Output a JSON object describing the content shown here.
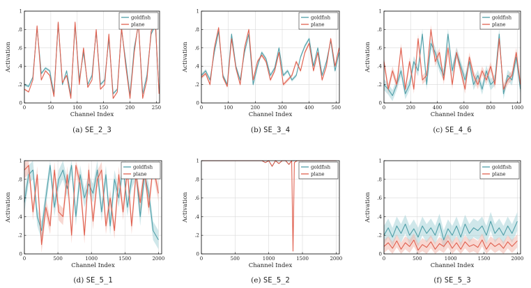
{
  "colors": {
    "goldfish": "#4f9fa8",
    "plane": "#e0604f",
    "goldfish_band": "#9fd0d6",
    "plane_band": "#f2b1a6"
  },
  "chart_data": [
    {
      "type": "line",
      "caption_label": "(a)",
      "caption_code": "SE_2_3",
      "xlabel": "Channel Index",
      "ylabel": "Activation",
      "xlim": [
        0,
        256
      ],
      "ylim": [
        0,
        1
      ],
      "xticks": [
        0,
        50,
        100,
        150,
        200,
        250
      ],
      "yticks": [
        0,
        0.2,
        0.4,
        0.6,
        0.8,
        1
      ],
      "band_width": [
        0.015,
        0.01
      ],
      "series": [
        {
          "name": "goldfish",
          "x": [
            0,
            8,
            16,
            24,
            32,
            40,
            48,
            56,
            64,
            72,
            80,
            88,
            96,
            104,
            112,
            120,
            128,
            136,
            144,
            152,
            160,
            168,
            176,
            184,
            192,
            200,
            208,
            216,
            224,
            232,
            240,
            248,
            255
          ],
          "values": [
            0.2,
            0.18,
            0.28,
            0.82,
            0.32,
            0.38,
            0.35,
            0.1,
            0.87,
            0.2,
            0.35,
            0.08,
            0.85,
            0.25,
            0.55,
            0.2,
            0.3,
            0.78,
            0.2,
            0.25,
            0.7,
            0.1,
            0.15,
            0.8,
            0.45,
            0.08,
            0.6,
            0.85,
            0.1,
            0.3,
            0.75,
            0.85,
            0.12
          ]
        },
        {
          "name": "plane",
          "x": [
            0,
            8,
            16,
            24,
            32,
            40,
            48,
            56,
            64,
            72,
            80,
            88,
            96,
            104,
            112,
            120,
            128,
            136,
            144,
            152,
            160,
            168,
            176,
            184,
            192,
            200,
            208,
            216,
            224,
            232,
            240,
            248,
            255
          ],
          "values": [
            0.15,
            0.12,
            0.25,
            0.84,
            0.25,
            0.35,
            0.3,
            0.07,
            0.88,
            0.22,
            0.3,
            0.05,
            0.88,
            0.2,
            0.6,
            0.17,
            0.25,
            0.8,
            0.15,
            0.2,
            0.75,
            0.05,
            0.12,
            0.82,
            0.4,
            0.05,
            0.55,
            0.88,
            0.05,
            0.25,
            0.78,
            0.88,
            0.1
          ]
        }
      ]
    },
    {
      "type": "line",
      "caption_label": "(b)",
      "caption_code": "SE_3_4",
      "xlabel": "Channel Index",
      "ylabel": "Activation",
      "xlim": [
        0,
        512
      ],
      "ylim": [
        0,
        1
      ],
      "xticks": [
        0,
        100,
        200,
        300,
        400,
        500
      ],
      "yticks": [
        0,
        0.2,
        0.4,
        0.6,
        0.8,
        1
      ],
      "band_width": [
        0.02,
        0.02
      ],
      "series": [
        {
          "name": "goldfish",
          "x": [
            0,
            16,
            32,
            48,
            64,
            80,
            96,
            112,
            128,
            144,
            160,
            176,
            192,
            208,
            224,
            240,
            256,
            272,
            288,
            304,
            320,
            336,
            352,
            368,
            384,
            400,
            416,
            432,
            448,
            464,
            480,
            496,
            511
          ],
          "values": [
            0.3,
            0.35,
            0.25,
            0.55,
            0.78,
            0.3,
            0.2,
            0.75,
            0.4,
            0.25,
            0.55,
            0.75,
            0.2,
            0.4,
            0.55,
            0.48,
            0.3,
            0.38,
            0.6,
            0.3,
            0.35,
            0.25,
            0.3,
            0.5,
            0.62,
            0.7,
            0.4,
            0.6,
            0.3,
            0.45,
            0.68,
            0.35,
            0.55
          ]
        },
        {
          "name": "plane",
          "x": [
            0,
            16,
            32,
            48,
            64,
            80,
            96,
            112,
            128,
            144,
            160,
            176,
            192,
            208,
            224,
            240,
            256,
            272,
            288,
            304,
            320,
            336,
            352,
            368,
            384,
            400,
            416,
            432,
            448,
            464,
            480,
            496,
            511
          ],
          "values": [
            0.28,
            0.32,
            0.2,
            0.6,
            0.82,
            0.28,
            0.18,
            0.7,
            0.38,
            0.2,
            0.6,
            0.8,
            0.25,
            0.45,
            0.52,
            0.45,
            0.25,
            0.35,
            0.55,
            0.2,
            0.25,
            0.3,
            0.45,
            0.35,
            0.55,
            0.65,
            0.35,
            0.55,
            0.25,
            0.4,
            0.7,
            0.4,
            0.6
          ]
        }
      ]
    },
    {
      "type": "line",
      "caption_label": "(c)",
      "caption_code": "SE_4_6",
      "xlabel": "Channel Index",
      "ylabel": "Activation",
      "xlim": [
        0,
        1024
      ],
      "ylim": [
        0,
        1
      ],
      "xticks": [
        0,
        200,
        400,
        600,
        800,
        1000
      ],
      "yticks": [
        0,
        0.2,
        0.4,
        0.6,
        0.8,
        1
      ],
      "band_width": [
        0.06,
        0.05
      ],
      "series": [
        {
          "name": "goldfish",
          "x": [
            0,
            32,
            64,
            96,
            128,
            160,
            192,
            224,
            256,
            288,
            320,
            352,
            384,
            416,
            448,
            480,
            512,
            544,
            576,
            608,
            640,
            672,
            704,
            736,
            768,
            800,
            832,
            864,
            896,
            928,
            960,
            992,
            1023
          ],
          "values": [
            0.2,
            0.15,
            0.08,
            0.2,
            0.35,
            0.1,
            0.2,
            0.45,
            0.35,
            0.75,
            0.2,
            0.65,
            0.55,
            0.4,
            0.3,
            0.75,
            0.35,
            0.55,
            0.4,
            0.25,
            0.45,
            0.2,
            0.3,
            0.15,
            0.35,
            0.2,
            0.25,
            0.75,
            0.1,
            0.3,
            0.25,
            0.5,
            0.15
          ]
        },
        {
          "name": "plane",
          "x": [
            0,
            32,
            64,
            96,
            128,
            160,
            192,
            224,
            256,
            288,
            320,
            352,
            384,
            416,
            448,
            480,
            512,
            544,
            576,
            608,
            640,
            672,
            704,
            736,
            768,
            800,
            832,
            864,
            896,
            928,
            960,
            992,
            1023
          ],
          "values": [
            0.45,
            0.15,
            0.35,
            0.2,
            0.6,
            0.15,
            0.45,
            0.15,
            0.7,
            0.25,
            0.3,
            0.8,
            0.45,
            0.55,
            0.25,
            0.6,
            0.2,
            0.55,
            0.35,
            0.15,
            0.5,
            0.3,
            0.2,
            0.35,
            0.25,
            0.4,
            0.2,
            0.7,
            0.15,
            0.25,
            0.3,
            0.55,
            0.2
          ]
        }
      ]
    },
    {
      "type": "line",
      "caption_label": "(d)",
      "caption_code": "SE_5_1",
      "xlabel": "Channel Index",
      "ylabel": "Activation",
      "xlim": [
        0,
        2048
      ],
      "ylim": [
        0,
        1
      ],
      "xticks": [
        0,
        500,
        1000,
        1500,
        2000
      ],
      "yticks": [
        0,
        0.2,
        0.4,
        0.6,
        0.8,
        1
      ],
      "band_width": [
        0.1,
        0.09
      ],
      "series": [
        {
          "name": "goldfish",
          "x": [
            0,
            64,
            128,
            192,
            256,
            320,
            384,
            448,
            512,
            576,
            640,
            704,
            768,
            832,
            896,
            960,
            1024,
            1088,
            1152,
            1216,
            1280,
            1344,
            1408,
            1472,
            1536,
            1600,
            1664,
            1728,
            1792,
            1856,
            1920,
            2000
          ],
          "values": [
            0.55,
            0.85,
            0.9,
            0.4,
            0.25,
            0.6,
            0.95,
            0.5,
            0.8,
            0.9,
            0.7,
            0.95,
            0.4,
            0.85,
            0.6,
            0.75,
            0.65,
            0.9,
            0.45,
            0.85,
            0.3,
            0.8,
            0.6,
            0.95,
            0.5,
            0.8,
            0.9,
            0.4,
            0.85,
            0.65,
            0.25,
            0.15
          ]
        },
        {
          "name": "plane",
          "x": [
            0,
            64,
            128,
            192,
            256,
            320,
            384,
            448,
            512,
            576,
            640,
            704,
            768,
            832,
            896,
            960,
            1024,
            1088,
            1152,
            1216,
            1280,
            1344,
            1408,
            1472,
            1536,
            1600,
            1664,
            1728,
            1792,
            1856,
            1920,
            2000
          ],
          "values": [
            0.9,
            0.95,
            0.45,
            0.85,
            0.1,
            0.5,
            0.3,
            0.9,
            0.45,
            0.4,
            0.85,
            0.2,
            0.95,
            0.75,
            0.2,
            0.9,
            0.35,
            0.8,
            0.9,
            0.3,
            0.6,
            0.25,
            0.85,
            0.45,
            0.9,
            0.3,
            0.85,
            0.55,
            0.9,
            0.5,
            0.95,
            0.65
          ]
        }
      ]
    },
    {
      "type": "line",
      "caption_label": "(e)",
      "caption_code": "SE_5_2",
      "xlabel": "Channel Index",
      "ylabel": "Activation",
      "xlim": [
        0,
        2048
      ],
      "ylim": [
        0,
        1
      ],
      "xticks": [
        0,
        500,
        1000,
        1500,
        2000
      ],
      "yticks": [
        0,
        0.2,
        0.4,
        0.6,
        0.8,
        1
      ],
      "band_width": [
        0.005,
        0.005
      ],
      "series": [
        {
          "name": "goldfish",
          "x": [
            0,
            100,
            200,
            300,
            400,
            500,
            600,
            700,
            800,
            900,
            950,
            1000,
            1050,
            1100,
            1150,
            1200,
            1250,
            1300,
            1340,
            1360,
            1380,
            1420,
            1500,
            1600,
            1700,
            1800,
            1900,
            2000
          ],
          "values": [
            1,
            1,
            1,
            1,
            1,
            1,
            1,
            1,
            1,
            1,
            0.98,
            1,
            0.94,
            1,
            0.97,
            1,
            1,
            0.96,
            1,
            1,
            1,
            1,
            1,
            1,
            1,
            1,
            1,
            1
          ]
        },
        {
          "name": "plane",
          "x": [
            0,
            100,
            200,
            300,
            400,
            500,
            600,
            700,
            800,
            900,
            950,
            1000,
            1050,
            1100,
            1150,
            1200,
            1250,
            1300,
            1340,
            1360,
            1380,
            1420,
            1500,
            1600,
            1700,
            1800,
            1900,
            2000
          ],
          "values": [
            1,
            1,
            1,
            1,
            1,
            1,
            1,
            1,
            1,
            1,
            0.98,
            1,
            0.94,
            1,
            0.97,
            1,
            1,
            0.96,
            1,
            0.03,
            0.98,
            1,
            1,
            1,
            1,
            1,
            1,
            1
          ]
        }
      ]
    },
    {
      "type": "line",
      "caption_label": "(f)",
      "caption_code": "SE_5_3",
      "xlabel": "Channel Index",
      "ylabel": "Activation",
      "xlim": [
        0,
        2048
      ],
      "ylim": [
        0,
        1
      ],
      "xticks": [
        0,
        500,
        1000,
        1500,
        2000
      ],
      "yticks": [
        0,
        0.2,
        0.4,
        0.6,
        0.8,
        1
      ],
      "band_width": [
        0.1,
        0.07
      ],
      "series": [
        {
          "name": "goldfish",
          "x": [
            0,
            64,
            128,
            192,
            256,
            320,
            384,
            448,
            512,
            576,
            640,
            704,
            768,
            832,
            896,
            960,
            1024,
            1088,
            1152,
            1216,
            1280,
            1344,
            1408,
            1472,
            1536,
            1600,
            1664,
            1728,
            1792,
            1856,
            1920,
            2000
          ],
          "values": [
            0.2,
            0.28,
            0.18,
            0.3,
            0.22,
            0.32,
            0.2,
            0.27,
            0.18,
            0.3,
            0.22,
            0.28,
            0.2,
            0.33,
            0.15,
            0.27,
            0.2,
            0.3,
            0.18,
            0.32,
            0.22,
            0.28,
            0.25,
            0.3,
            0.2,
            0.35,
            0.22,
            0.28,
            0.2,
            0.3,
            0.22,
            0.35
          ]
        },
        {
          "name": "plane",
          "x": [
            0,
            64,
            128,
            192,
            256,
            320,
            384,
            448,
            512,
            576,
            640,
            704,
            768,
            832,
            896,
            960,
            1024,
            1088,
            1152,
            1216,
            1280,
            1344,
            1408,
            1472,
            1536,
            1600,
            1664,
            1728,
            1792,
            1856,
            1920,
            2000
          ],
          "values": [
            0.08,
            0.12,
            0.06,
            0.14,
            0.05,
            0.12,
            0.08,
            0.15,
            0.04,
            0.1,
            0.07,
            0.13,
            0.05,
            0.11,
            0.08,
            0.14,
            0.06,
            0.12,
            0.05,
            0.13,
            0.08,
            0.1,
            0.07,
            0.15,
            0.05,
            0.12,
            0.08,
            0.11,
            0.06,
            0.13,
            0.08,
            0.14
          ]
        }
      ]
    }
  ]
}
